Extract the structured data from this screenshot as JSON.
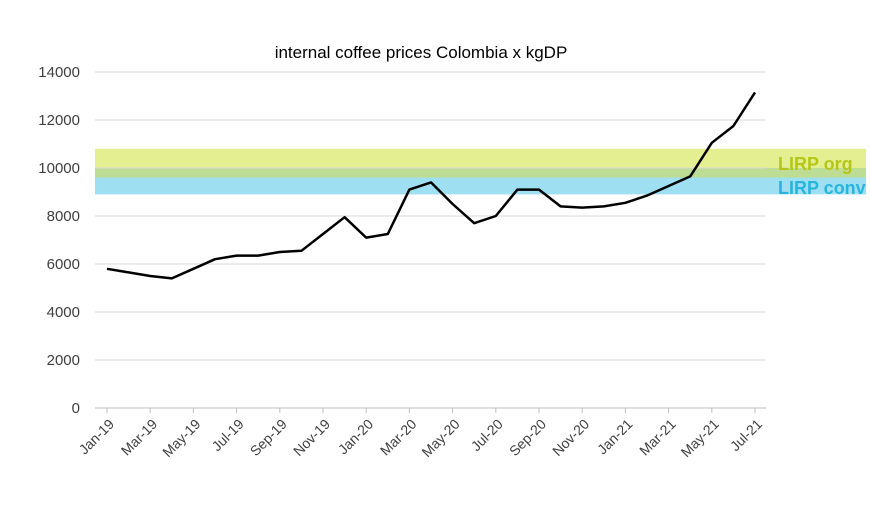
{
  "chart_data": {
    "type": "line",
    "title": "internal coffee prices Colombia x kgDP",
    "xlabel": "",
    "ylabel": "",
    "ylim": [
      0,
      14000
    ],
    "yticks": [
      0,
      2000,
      4000,
      6000,
      8000,
      10000,
      12000,
      14000
    ],
    "grid": true,
    "categories": [
      "Jan-19",
      "Feb-19",
      "Mar-19",
      "Apr-19",
      "May-19",
      "Jun-19",
      "Jul-19",
      "Aug-19",
      "Sep-19",
      "Oct-19",
      "Nov-19",
      "Dec-19",
      "Jan-20",
      "Feb-20",
      "Mar-20",
      "Apr-20",
      "May-20",
      "Jun-20",
      "Jul-20",
      "Aug-20",
      "Sep-20",
      "Oct-20",
      "Nov-20",
      "Dec-20",
      "Jan-21",
      "Feb-21",
      "Mar-21",
      "Apr-21",
      "May-21",
      "Jun-21",
      "Jul-21"
    ],
    "xtick_labels": [
      "Jan-19",
      "Mar-19",
      "May-19",
      "Jul-19",
      "Sep-19",
      "Nov-19",
      "Jan-20",
      "Mar-20",
      "May-20",
      "Jul-20",
      "Sep-20",
      "Nov-20",
      "Jan-21",
      "Mar-21",
      "May-21",
      "Jul-21"
    ],
    "series": [
      {
        "values": [
          5800,
          5650,
          5500,
          5400,
          5800,
          6200,
          6350,
          6350,
          6500,
          6550,
          7250,
          7950,
          7100,
          7250,
          9100,
          9400,
          8500,
          7700,
          8000,
          9100,
          9100,
          8400,
          8350,
          8400,
          8550,
          8850,
          9250,
          9650,
          11050,
          11750,
          13150
        ],
        "color": "#000000"
      }
    ],
    "bands": [
      {
        "label": "LIRP org",
        "from": 9600,
        "to": 10800,
        "color": "#e3ef91",
        "text_color": "#b5c619"
      },
      {
        "label": "LIRP conv",
        "from": 8900,
        "to": 10000,
        "color": "#9edff2",
        "text_color": "#27b5de"
      }
    ],
    "bands_overlap_color": "#bedd94"
  }
}
